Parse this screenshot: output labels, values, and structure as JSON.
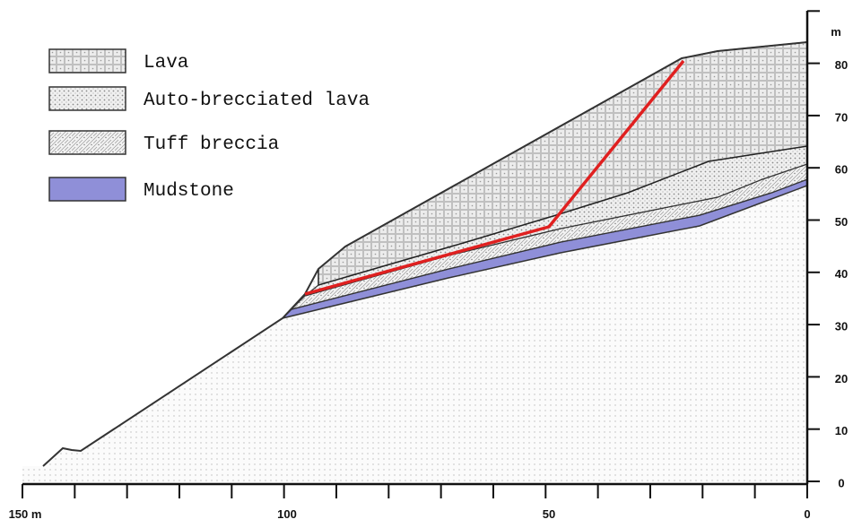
{
  "legend": [
    {
      "label": "Lava"
    },
    {
      "label": "Auto-brecciated lava"
    },
    {
      "label": "Tuff breccia"
    },
    {
      "label": "Mudstone"
    }
  ],
  "x_axis": {
    "labels": [
      "150 m",
      "100",
      "50",
      "0"
    ]
  },
  "y_axis": {
    "unit": "m",
    "labels": [
      "80",
      "70",
      "60",
      "50",
      "40",
      "30",
      "20",
      "10",
      "0"
    ]
  }
}
